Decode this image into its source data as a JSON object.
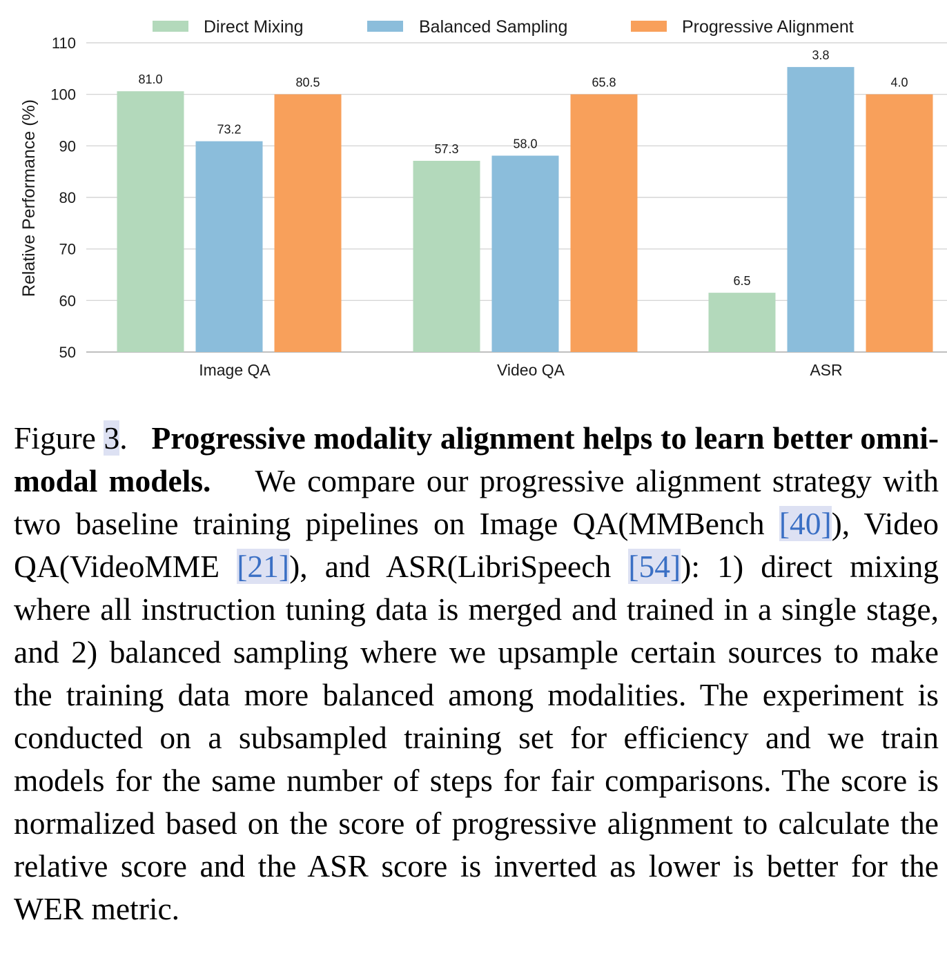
{
  "colors": {
    "direct": "#b3d9bb",
    "balanced": "#8bbddb",
    "progressive": "#f8a05b",
    "grid": "#d6d6d6",
    "axis": "#bfbfbf"
  },
  "chart_data": {
    "type": "bar",
    "title": "",
    "xlabel": "",
    "ylabel": "Relative Performance (%)",
    "ylim": [
      50,
      110
    ],
    "yticks": [
      "50",
      "60",
      "70",
      "80",
      "90",
      "100",
      "110"
    ],
    "grid": true,
    "legend_position": "top",
    "categories": [
      "Image QA",
      "Video QA",
      "ASR"
    ],
    "series": [
      {
        "name": "Direct Mixing",
        "color_key": "direct",
        "values": [
          100.6,
          87.1,
          61.5
        ],
        "labels": [
          "81.0",
          "57.3",
          "6.5"
        ]
      },
      {
        "name": "Balanced Sampling",
        "color_key": "balanced",
        "values": [
          90.9,
          88.1,
          105.3
        ],
        "labels": [
          "73.2",
          "58.0",
          "3.8"
        ]
      },
      {
        "name": "Progressive Alignment",
        "color_key": "progressive",
        "values": [
          100.0,
          100.0,
          100.0
        ],
        "labels": [
          "80.5",
          "65.8",
          "4.0"
        ]
      }
    ]
  },
  "caption": {
    "figure_label": "Figure",
    "figure_number": "3",
    "figure_period": ".",
    "bold_title": "Progressive modality alignment helps to learn better omni-modal models.",
    "text_1": "We compare our progressive alignment strategy with two baseline training pipelines on Im­age QA(MMBench ",
    "ref_1": "[40]",
    "text_2": "), Video QA(VideoMME ",
    "ref_2": "[21]",
    "text_3": "), and ASR(LibriSpeech ",
    "ref_3": "[54]",
    "text_4": "): 1) direct mixing where all instruction tuning data is merged and trained in a single stage, and 2) bal­anced sampling where we upsample certain sources to make the training data more balanced among modalities. The experiment is conducted on a subsampled training set for efficiency and we train models for the same number of steps for fair comparisons. The score is normalized based on the score of progressive alignment to calculate the relative score and the ASR score is inverted as lower is better for the WER metric."
  }
}
